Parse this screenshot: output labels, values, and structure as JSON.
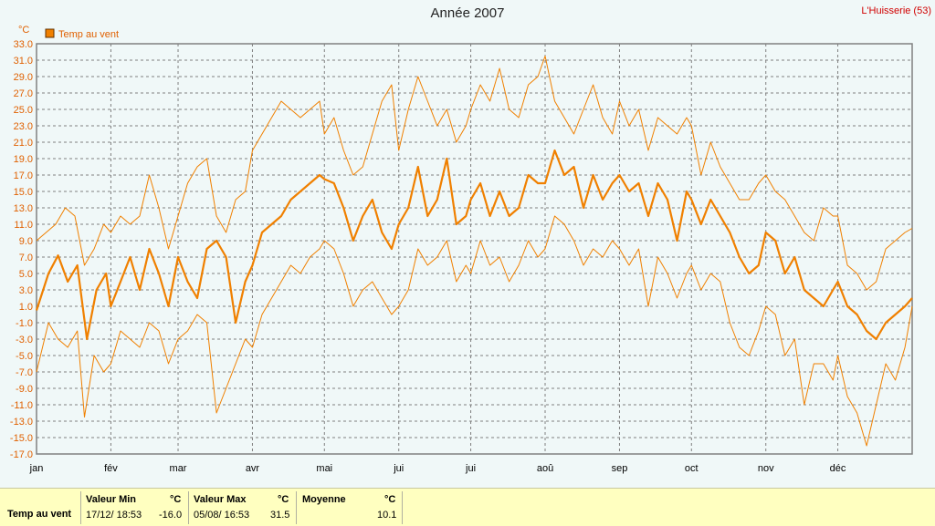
{
  "title": "Année 2007",
  "station": "L'Huisserie (53)",
  "colors": {
    "series": "#f08000",
    "grid": "#808080",
    "axis_text": "#e06000",
    "frame": "#808080",
    "stats_bg": "#ffffc0"
  },
  "chart_data": {
    "type": "line",
    "title": "Année 2007",
    "ylabel": "°C",
    "ylim": [
      -17,
      33
    ],
    "yticks": [
      "33.0",
      "31.0",
      "29.0",
      "27.0",
      "25.0",
      "23.0",
      "21.0",
      "19.0",
      "17.0",
      "15.0",
      "13.0",
      "11.0",
      "9.0",
      "7.0",
      "5.0",
      "3.0",
      "1.0",
      "-1.0",
      "-3.0",
      "-5.0",
      "-7.0",
      "-9.0",
      "-11.0",
      "-13.0",
      "-15.0",
      "-17.0"
    ],
    "xlim": [
      0,
      365
    ],
    "x_months": [
      {
        "label": "jan",
        "day": 0
      },
      {
        "label": "fév",
        "day": 31
      },
      {
        "label": "mar",
        "day": 59
      },
      {
        "label": "avr",
        "day": 90
      },
      {
        "label": "mai",
        "day": 120
      },
      {
        "label": "jui",
        "day": 151
      },
      {
        "label": "jui",
        "day": 181
      },
      {
        "label": "aoû",
        "day": 212
      },
      {
        "label": "sep",
        "day": 243
      },
      {
        "label": "oct",
        "day": 273
      },
      {
        "label": "nov",
        "day": 304
      },
      {
        "label": "déc",
        "day": 334
      }
    ],
    "grid": true,
    "legend_position": "top-left",
    "series": [
      {
        "name": "Temp au vent",
        "role": "mean",
        "x": [
          0,
          5,
          9,
          13,
          17,
          21,
          25,
          29,
          31,
          35,
          39,
          43,
          47,
          51,
          55,
          59,
          63,
          67,
          71,
          75,
          79,
          83,
          87,
          90,
          94,
          98,
          102,
          106,
          110,
          114,
          118,
          120,
          124,
          128,
          132,
          136,
          140,
          144,
          148,
          151,
          155,
          159,
          163,
          167,
          171,
          175,
          179,
          181,
          185,
          189,
          193,
          197,
          201,
          205,
          209,
          212,
          216,
          220,
          224,
          228,
          232,
          236,
          240,
          243,
          247,
          251,
          255,
          259,
          263,
          267,
          271,
          273,
          277,
          281,
          285,
          289,
          293,
          297,
          301,
          304,
          308,
          312,
          316,
          320,
          324,
          328,
          332,
          334,
          338,
          342,
          346,
          350,
          354,
          358,
          362,
          365
        ],
        "values": [
          0.5,
          5.0,
          7.2,
          4.0,
          6.0,
          -3.0,
          3.0,
          5.0,
          1.0,
          4.0,
          7.0,
          3.0,
          8.0,
          5.0,
          1.0,
          7.0,
          4.0,
          2.0,
          8.0,
          9.0,
          7.0,
          -1.0,
          4.0,
          6.0,
          10.0,
          11.0,
          12.0,
          14.0,
          15.0,
          16.0,
          17.0,
          16.5,
          16.0,
          13.0,
          9.0,
          12.0,
          14.0,
          10.0,
          8.0,
          11.0,
          13.0,
          18.0,
          12.0,
          14.0,
          19.0,
          11.0,
          12.0,
          14.0,
          16.0,
          12.0,
          15.0,
          12.0,
          13.0,
          17.0,
          16.0,
          16.0,
          20.0,
          17.0,
          18.0,
          13.0,
          17.0,
          14.0,
          16.0,
          17.0,
          15.0,
          16.0,
          12.0,
          16.0,
          14.0,
          9.0,
          15.0,
          14.0,
          11.0,
          14.0,
          12.0,
          10.0,
          7.0,
          5.0,
          6.0,
          10.0,
          9.0,
          5.0,
          7.0,
          3.0,
          2.0,
          1.0,
          3.0,
          4.0,
          1.0,
          0.0,
          -2.0,
          -3.0,
          -1.0,
          0.0,
          1.0,
          2.0
        ]
      },
      {
        "name": "",
        "role": "max",
        "x": [
          0,
          4,
          8,
          12,
          16,
          20,
          24,
          28,
          31,
          35,
          39,
          43,
          47,
          51,
          55,
          59,
          63,
          67,
          71,
          75,
          79,
          83,
          87,
          90,
          94,
          98,
          102,
          106,
          110,
          114,
          118,
          120,
          124,
          128,
          132,
          136,
          140,
          144,
          148,
          151,
          155,
          159,
          163,
          167,
          171,
          175,
          179,
          181,
          185,
          189,
          193,
          197,
          201,
          205,
          209,
          212,
          216,
          220,
          224,
          228,
          232,
          236,
          240,
          243,
          247,
          251,
          255,
          259,
          263,
          267,
          271,
          273,
          277,
          281,
          285,
          289,
          293,
          297,
          301,
          304,
          308,
          312,
          316,
          320,
          324,
          328,
          332,
          334,
          338,
          342,
          346,
          350,
          354,
          358,
          362,
          365
        ],
        "values": [
          9.0,
          10.0,
          11.0,
          13.0,
          12.0,
          6.0,
          8.0,
          11.0,
          10.0,
          12.0,
          11.0,
          12.0,
          17.0,
          13.0,
          8.0,
          12.0,
          16.0,
          18.0,
          19.0,
          12.0,
          10.0,
          14.0,
          15.0,
          20.0,
          22.0,
          24.0,
          26.0,
          25.0,
          24.0,
          25.0,
          26.0,
          22.0,
          24.0,
          20.0,
          17.0,
          18.0,
          22.0,
          26.0,
          28.0,
          20.0,
          25.0,
          29.0,
          26.0,
          23.0,
          25.0,
          21.0,
          23.0,
          25.0,
          28.0,
          26.0,
          30.0,
          25.0,
          24.0,
          28.0,
          29.0,
          31.5,
          26.0,
          24.0,
          22.0,
          25.0,
          28.0,
          24.0,
          22.0,
          26.0,
          23.0,
          25.0,
          20.0,
          24.0,
          23.0,
          22.0,
          24.0,
          23.0,
          17.0,
          21.0,
          18.0,
          16.0,
          14.0,
          14.0,
          16.0,
          17.0,
          15.0,
          14.0,
          12.0,
          10.0,
          9.0,
          13.0,
          12.0,
          12.0,
          6.0,
          5.0,
          3.0,
          4.0,
          8.0,
          9.0,
          10.0,
          10.5
        ]
      },
      {
        "name": "",
        "role": "min",
        "x": [
          0,
          5,
          9,
          13,
          17,
          20,
          24,
          28,
          31,
          35,
          39,
          43,
          47,
          51,
          55,
          59,
          63,
          67,
          71,
          75,
          79,
          83,
          87,
          90,
          94,
          98,
          102,
          106,
          110,
          114,
          118,
          120,
          124,
          128,
          132,
          136,
          140,
          144,
          148,
          151,
          155,
          159,
          163,
          167,
          171,
          175,
          179,
          181,
          185,
          189,
          193,
          197,
          201,
          205,
          209,
          212,
          216,
          220,
          224,
          228,
          232,
          236,
          240,
          243,
          247,
          251,
          255,
          259,
          263,
          267,
          271,
          273,
          277,
          281,
          285,
          289,
          293,
          297,
          301,
          304,
          308,
          312,
          316,
          320,
          324,
          328,
          332,
          334,
          338,
          342,
          346,
          350,
          354,
          358,
          362,
          365
        ],
        "values": [
          -7.0,
          -1.0,
          -3.0,
          -4.0,
          -2.0,
          -12.5,
          -5.0,
          -7.0,
          -6.0,
          -2.0,
          -3.0,
          -4.0,
          -1.0,
          -2.0,
          -6.0,
          -3.0,
          -2.0,
          0.0,
          -1.0,
          -12.0,
          -9.0,
          -6.0,
          -3.0,
          -4.0,
          0.0,
          2.0,
          4.0,
          6.0,
          5.0,
          7.0,
          8.0,
          9.0,
          8.0,
          5.0,
          1.0,
          3.0,
          4.0,
          2.0,
          0.0,
          1.0,
          3.0,
          8.0,
          6.0,
          7.0,
          9.0,
          4.0,
          6.0,
          5.0,
          9.0,
          6.0,
          7.0,
          4.0,
          6.0,
          9.0,
          7.0,
          8.0,
          12.0,
          11.0,
          9.0,
          6.0,
          8.0,
          7.0,
          9.0,
          8.0,
          6.0,
          8.0,
          1.0,
          7.0,
          5.0,
          2.0,
          5.0,
          6.0,
          3.0,
          5.0,
          4.0,
          -1.0,
          -4.0,
          -5.0,
          -2.0,
          1.0,
          0.0,
          -5.0,
          -3.0,
          -11.0,
          -6.0,
          -6.0,
          -8.0,
          -5.0,
          -10.0,
          -12.0,
          -16.0,
          -11.0,
          -6.0,
          -8.0,
          -4.0,
          1.0
        ]
      }
    ]
  },
  "legend": {
    "label": "Temp au vent"
  },
  "stats": {
    "row_label": "Temp au vent",
    "min": {
      "header": "Valeur Min",
      "unit": "°C",
      "when": "17/12/ 18:53",
      "value": "-16.0"
    },
    "max": {
      "header": "Valeur Max",
      "unit": "°C",
      "when": "05/08/ 16:53",
      "value": "31.5"
    },
    "mean": {
      "header": "Moyenne",
      "unit": "°C",
      "value": "10.1"
    }
  }
}
